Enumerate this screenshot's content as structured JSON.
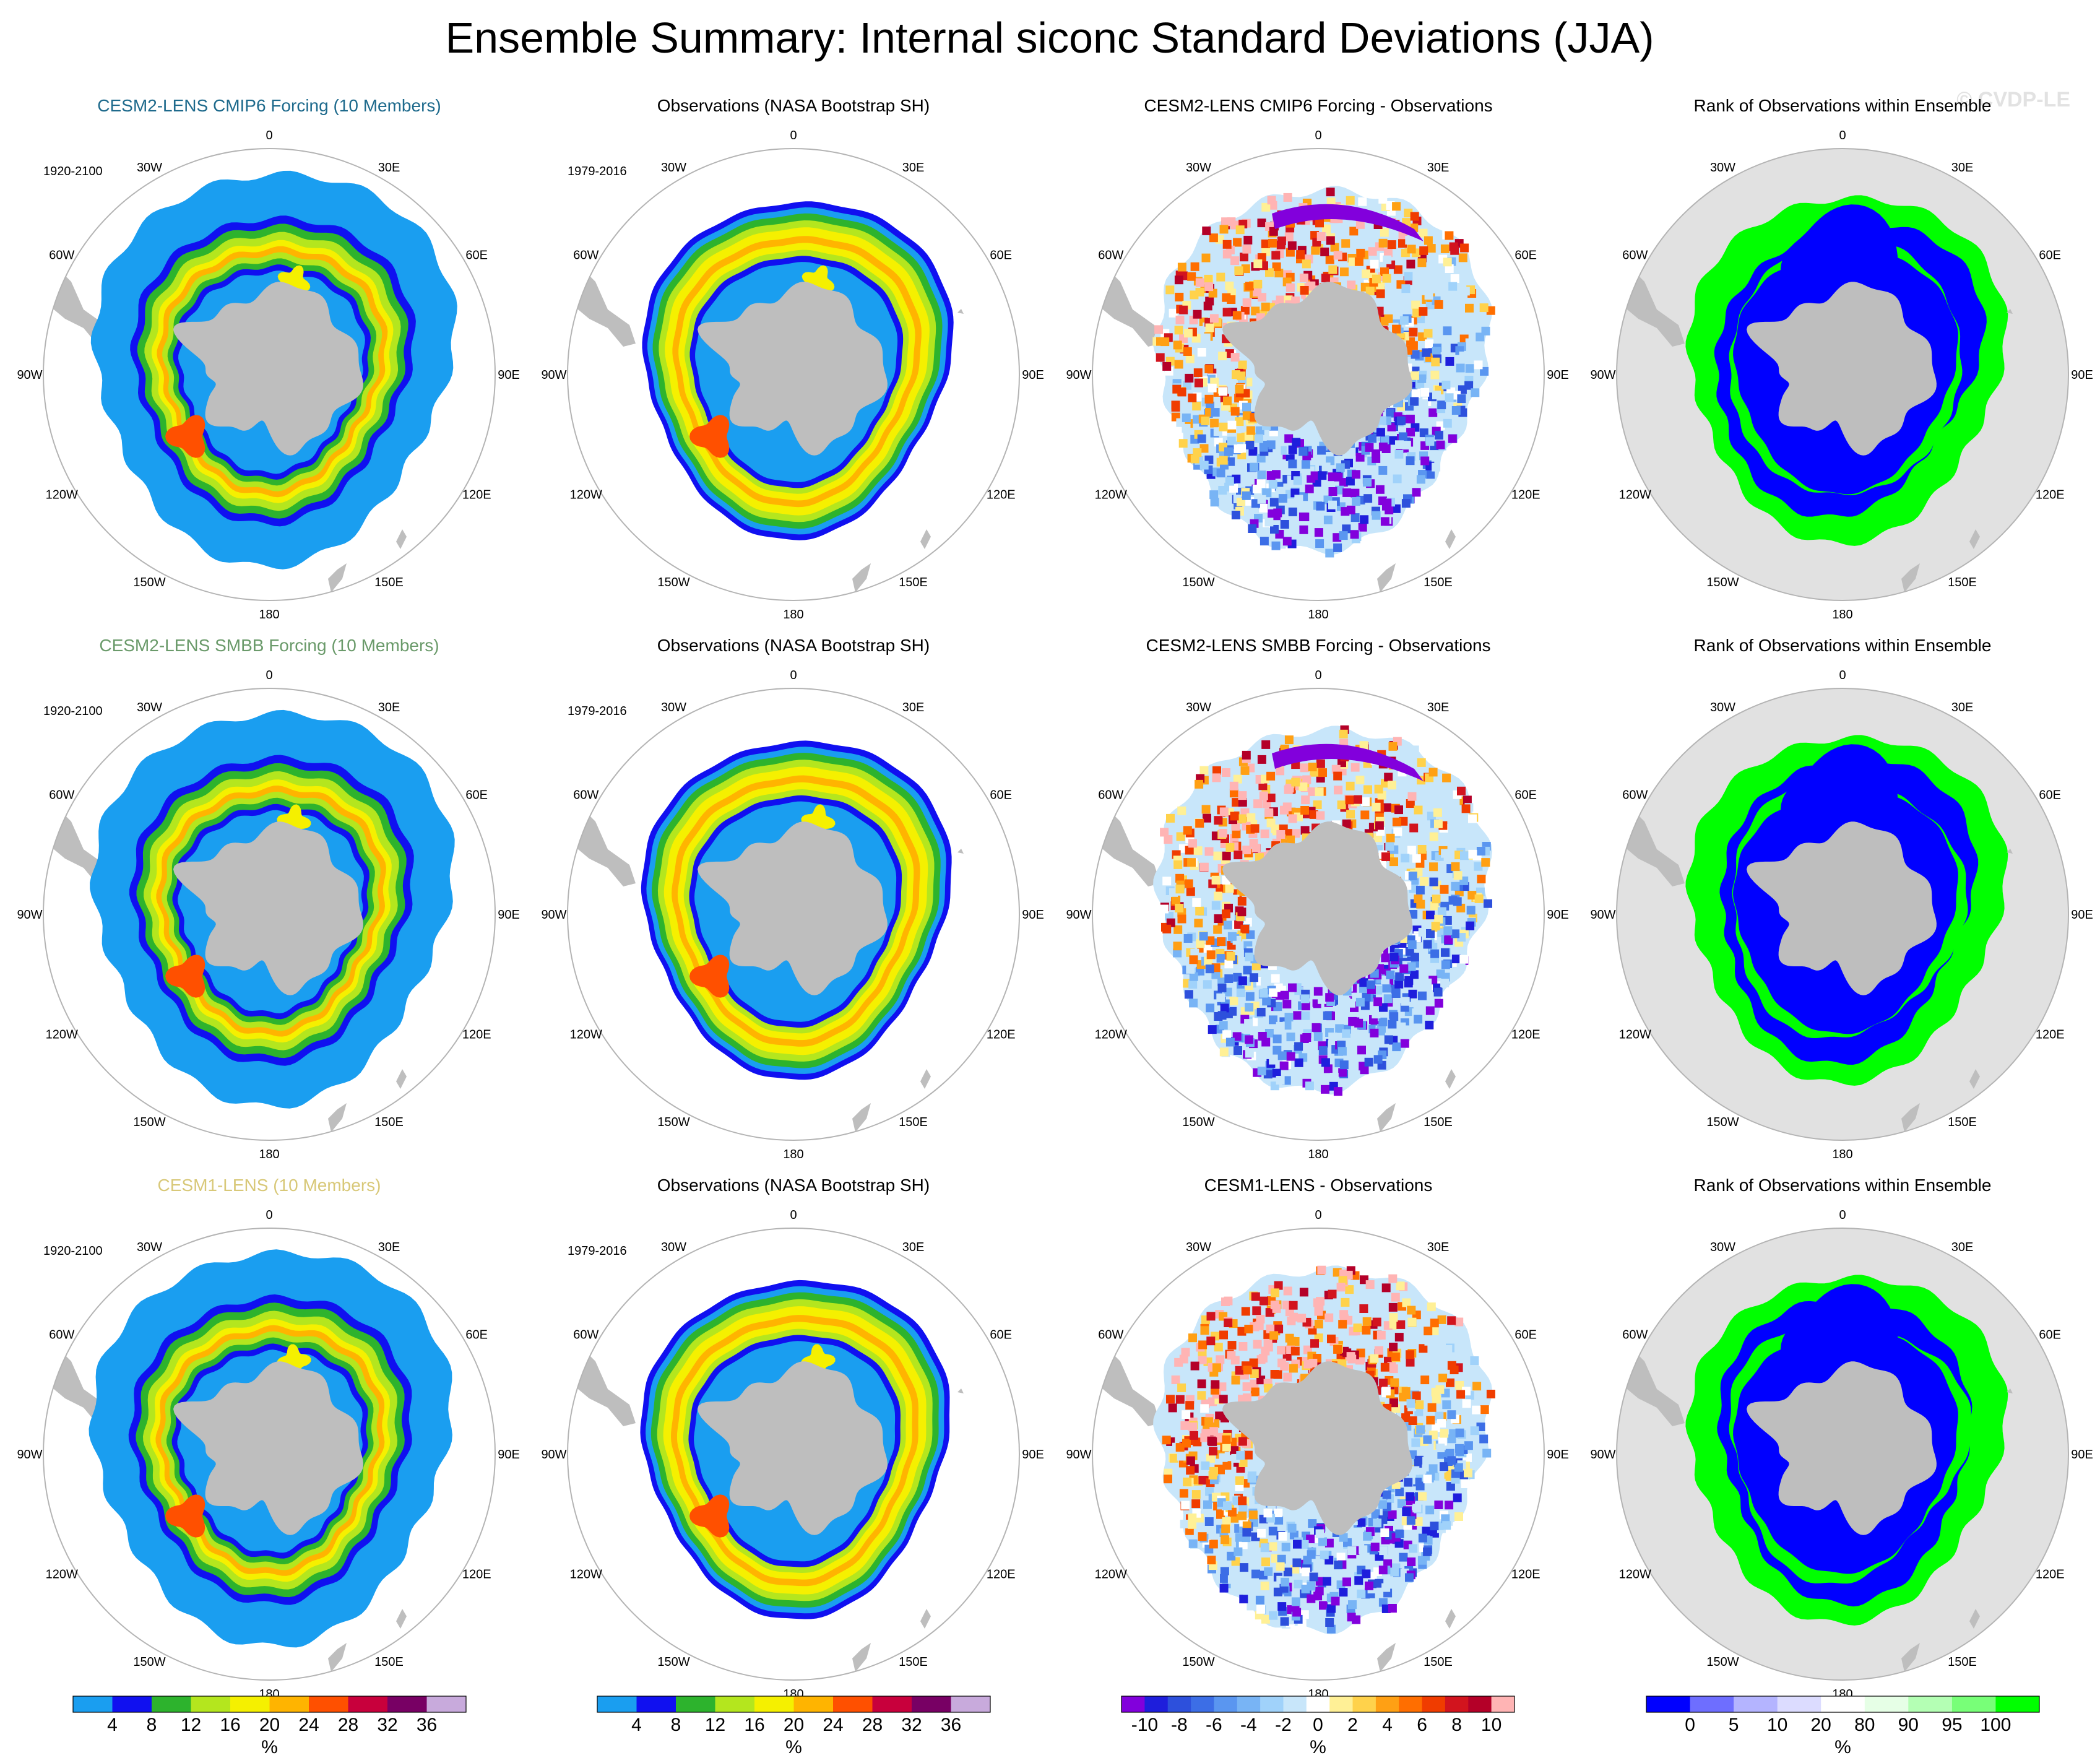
{
  "title": "Ensemble Summary: Internal siconc Standard Deviations (JJA)",
  "watermark": "© CVDP-LE",
  "colors": {
    "title_cmip6": "#1e6a8c",
    "title_smbb": "#6a9a6a",
    "title_cesm1": "#d8c878",
    "title_default": "#000000",
    "land": "#bebebe",
    "circle": "#b4b4b4",
    "rank_bg": "#e1e1e1"
  },
  "rows": [
    {
      "panels": [
        {
          "kind": "model",
          "title": "CESM2-LENS CMIP6 Forcing (10 Members)",
          "title_color": "#1e6a8c",
          "period": "1920-2100",
          "variant": 0
        },
        {
          "kind": "obs",
          "title": "Observations (NASA Bootstrap SH)",
          "title_color": "#000000",
          "period": "1979-2016",
          "variant": 0
        },
        {
          "kind": "diff",
          "title": "CESM2-LENS CMIP6 Forcing - Observations",
          "title_color": "#000000",
          "period": "",
          "variant": 0
        },
        {
          "kind": "rank",
          "title": "Rank of Observations within Ensemble",
          "title_color": "#000000",
          "period": "",
          "variant": 0
        }
      ]
    },
    {
      "panels": [
        {
          "kind": "model",
          "title": "CESM2-LENS SMBB Forcing (10 Members)",
          "title_color": "#6a9a6a",
          "period": "1920-2100",
          "variant": 1
        },
        {
          "kind": "obs",
          "title": "Observations (NASA Bootstrap SH)",
          "title_color": "#000000",
          "period": "1979-2016",
          "variant": 1
        },
        {
          "kind": "diff",
          "title": "CESM2-LENS SMBB Forcing - Observations",
          "title_color": "#000000",
          "period": "",
          "variant": 1
        },
        {
          "kind": "rank",
          "title": "Rank of Observations within Ensemble",
          "title_color": "#000000",
          "period": "",
          "variant": 1
        }
      ]
    },
    {
      "panels": [
        {
          "kind": "model",
          "title": "CESM1-LENS (10 Members)",
          "title_color": "#d8c878",
          "period": "1920-2100",
          "variant": 2
        },
        {
          "kind": "obs",
          "title": "Observations (NASA Bootstrap SH)",
          "title_color": "#000000",
          "period": "1979-2016",
          "variant": 2
        },
        {
          "kind": "diff",
          "title": "CESM1-LENS - Observations",
          "title_color": "#000000",
          "period": "",
          "variant": 2
        },
        {
          "kind": "rank",
          "title": "Rank of Observations within Ensemble",
          "title_color": "#000000",
          "period": "",
          "variant": 2
        }
      ]
    }
  ],
  "map_labels": {
    "lon_labels": [
      "0",
      "30E",
      "60E",
      "90E",
      "120E",
      "150E",
      "180",
      "150W",
      "120W",
      "90W",
      "60W",
      "30W"
    ],
    "lon_angles_deg": [
      0,
      30,
      60,
      90,
      120,
      150,
      180,
      210,
      240,
      270,
      300,
      330
    ]
  },
  "chart_data": [
    {
      "type": "heatmap",
      "name": "std-dev colorbar",
      "unit": "%",
      "ticks": [
        "4",
        "8",
        "12",
        "16",
        "20",
        "24",
        "28",
        "32",
        "36"
      ],
      "colors": [
        "#1a9ef0",
        "#1010f0",
        "#2db32d",
        "#b4e61e",
        "#f5f000",
        "#ffb400",
        "#ff5000",
        "#c8003c",
        "#780064",
        "#c8aadc"
      ]
    },
    {
      "type": "heatmap",
      "name": "difference colorbar",
      "unit": "%",
      "ticks": [
        "-10",
        "-8",
        "-6",
        "-4",
        "-2",
        "0",
        "2",
        "4",
        "6",
        "8",
        "10"
      ],
      "colors": [
        "#8200dc",
        "#1e1edc",
        "#2d50dc",
        "#3c6ee6",
        "#5a96f0",
        "#78b4f5",
        "#a0d2fa",
        "#c8e6fa",
        "#ffffff",
        "#fff096",
        "#ffd24b",
        "#ffa014",
        "#ff6e00",
        "#f03c00",
        "#d2141e",
        "#b40028",
        "#ffb4b4"
      ]
    },
    {
      "type": "heatmap",
      "name": "rank colorbar",
      "unit": "%",
      "ticks": [
        "0",
        "5",
        "10",
        "20",
        "80",
        "90",
        "95",
        "100"
      ],
      "colors": [
        "#0000ff",
        "#6e6eff",
        "#b4b4ff",
        "#dcdcff",
        "#ffffff",
        "#e6ffe6",
        "#b4ffb4",
        "#78ff78",
        "#00ff00"
      ]
    }
  ]
}
